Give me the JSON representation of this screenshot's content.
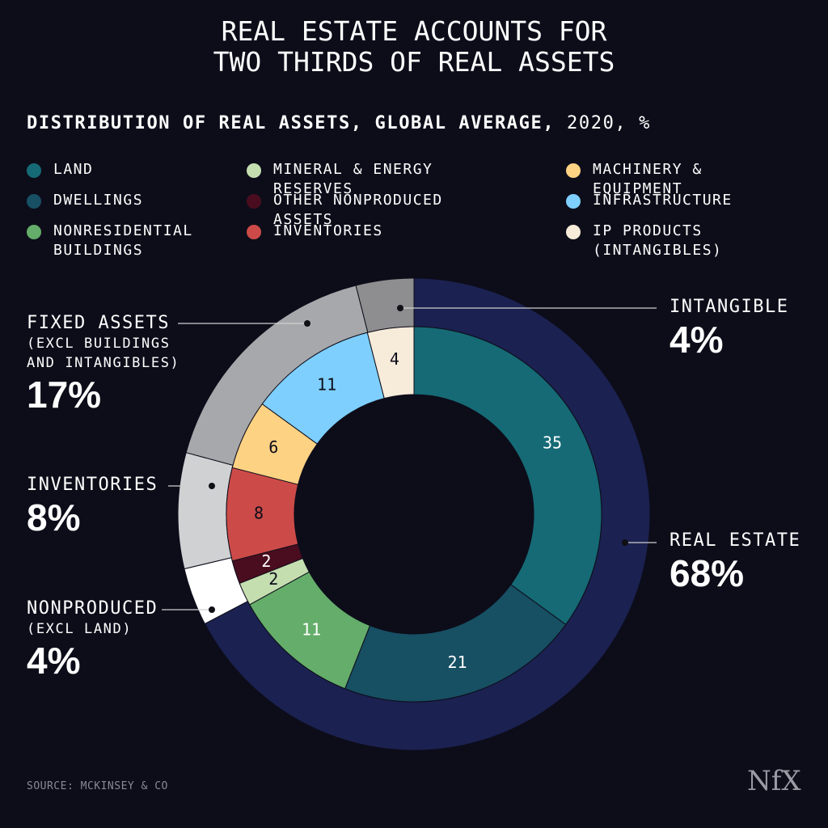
{
  "title": "REAL ESTATE ACCOUNTS FOR TWO THIRDS OF REAL ASSETS",
  "subtitle": "DISTRIBUTION OF REAL ASSETS, GLOBAL AVERAGE,",
  "subtitle_note": "2020, %",
  "source": "SOURCE: MCKINSEY & CO",
  "logo": "NfX",
  "chart_data": {
    "type": "nested-donut",
    "inner": {
      "categories": [
        "LAND",
        "DWELLINGS",
        "NONRESIDENTIAL BUILDINGS",
        "MINERAL & ENERGY RESERVES",
        "OTHER NONPRODUCED ASSETS",
        "INVENTORIES",
        "MACHINERY & EQUIPMENT",
        "INFRASTRUCTURE",
        "IP PRODUCTS (INTANGIBLES)"
      ],
      "values": [
        35,
        21,
        11,
        2,
        2,
        8,
        6,
        11,
        4
      ],
      "colors": [
        "#156a75",
        "#174f63",
        "#64ad6a",
        "#c5deb0",
        "#4a0d1f",
        "#cc4b48",
        "#fdd283",
        "#7ecffd",
        "#f7ebda"
      ],
      "label_colors": [
        "#ffffff",
        "#ffffff",
        "#ffffff",
        "#0d0d1a",
        "#ffffff",
        "#0d0d1a",
        "#0d0d1a",
        "#0d0d1a",
        "#0d0d1a"
      ]
    },
    "outer": {
      "categories": [
        "REAL ESTATE",
        "NONPRODUCED",
        "INVENTORIES",
        "FIXED ASSETS",
        "INTANGIBLE"
      ],
      "notes": [
        null,
        "(EXCL LAND)",
        null,
        "(EXCL BUILDINGS AND INTANGIBLES)",
        null
      ],
      "values": [
        68,
        4,
        8,
        17,
        4
      ],
      "value_labels": [
        "68%",
        "4%",
        "8%",
        "17%",
        "4%"
      ],
      "colors": [
        "#1b2150",
        "#ffffff",
        "#d0d1d3",
        "#a7a8ab",
        "#8e8e90"
      ]
    }
  }
}
